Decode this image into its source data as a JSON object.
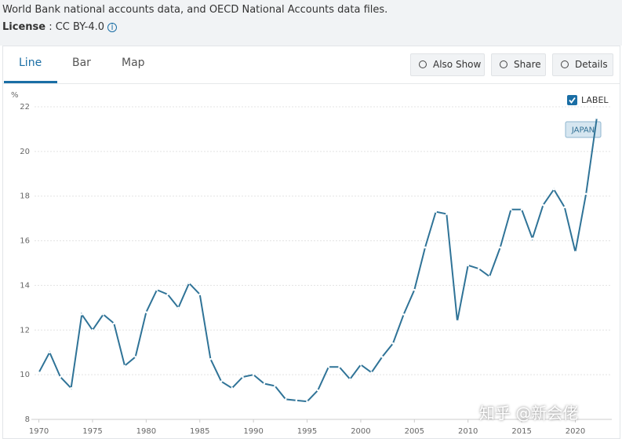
{
  "header": {
    "source": "World Bank national accounts data, and OECD National Accounts data files.",
    "license_label": "License",
    "license_value": ": CC BY-4.0"
  },
  "tabs": [
    "Line",
    "Bar",
    "Map"
  ],
  "buttons": [
    "Also Show",
    "Share",
    "Details"
  ],
  "watermark": "知乎 @新会佬",
  "chart_data": {
    "type": "line",
    "y_unit": "%",
    "legend_toggle": "LABEL",
    "x": [
      1970,
      1971,
      1972,
      1973,
      1974,
      1975,
      1976,
      1977,
      1978,
      1979,
      1980,
      1981,
      1982,
      1983,
      1984,
      1985,
      1986,
      1987,
      1988,
      1989,
      1990,
      1991,
      1992,
      1993,
      1994,
      1995,
      1996,
      1997,
      1998,
      1999,
      2000,
      2001,
      2002,
      2003,
      2004,
      2005,
      2006,
      2007,
      2008,
      2009,
      2010,
      2011,
      2012,
      2013,
      2014,
      2015,
      2016,
      2017,
      2018,
      2019,
      2020,
      2021,
      2022
    ],
    "series": [
      {
        "name": "JAPAN",
        "color": "#2f7397",
        "values": [
          10.1,
          11.0,
          9.9,
          9.4,
          12.7,
          12.0,
          12.7,
          12.3,
          10.4,
          10.8,
          12.8,
          13.8,
          13.6,
          13.0,
          14.1,
          13.6,
          10.7,
          9.7,
          9.4,
          9.9,
          10.0,
          9.6,
          9.5,
          8.9,
          8.85,
          8.8,
          9.3,
          10.35,
          10.35,
          9.8,
          10.45,
          10.1,
          10.8,
          11.4,
          12.7,
          13.8,
          15.7,
          17.3,
          17.2,
          12.4,
          14.9,
          14.75,
          14.4,
          15.7,
          17.4,
          17.4,
          16.1,
          17.6,
          18.3,
          17.5,
          15.5,
          18.1,
          21.5
        ]
      }
    ],
    "xlim": [
      1969.3,
      2023.4
    ],
    "xticks": [
      1970,
      1975,
      1980,
      1985,
      1990,
      1995,
      2000,
      2005,
      2010,
      2015,
      2020
    ],
    "ylim": [
      8,
      22
    ],
    "yticks": [
      8,
      10,
      12,
      14,
      16,
      18,
      20,
      22
    ],
    "grid": true
  }
}
